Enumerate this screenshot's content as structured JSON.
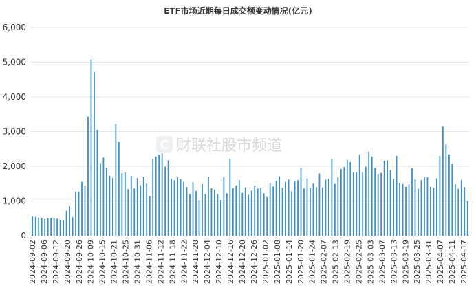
{
  "chart_data": {
    "type": "bar",
    "title": "ETF市场近期每日成交额变动情况(亿元)",
    "ylim": [
      0,
      6000
    ],
    "y_ticks": [
      "0",
      "1,000",
      "2,000",
      "3,000",
      "4,000",
      "5,000",
      "6,000"
    ],
    "x_tick_labels": [
      "2024-09-02",
      "2024-09-06",
      "2024-09-12",
      "2024-09-20",
      "2024-09-26",
      "2024-10-09",
      "2024-10-15",
      "2024-10-21",
      "2024-10-25",
      "2024-10-31",
      "2024-11-06",
      "2024-11-12",
      "2024-11-18",
      "2024-11-22",
      "2024-11-28",
      "2024-12-04",
      "2024-12-10",
      "2024-12-16",
      "2024-12-20",
      "2024-12-26",
      "2025-01-02",
      "2025-01-08",
      "2025-01-14",
      "2025-01-20",
      "2025-01-24",
      "2025-02-07",
      "2025-02-13",
      "2025-02-19",
      "2025-02-25",
      "2025-03-03",
      "2025-03-07",
      "2025-03-13",
      "2025-03-19",
      "2025-03-25",
      "2025-03-31",
      "2025-04-07",
      "2025-04-11",
      "2025-04-17"
    ],
    "values": [
      550,
      540,
      520,
      510,
      480,
      500,
      510,
      510,
      490,
      460,
      450,
      720,
      850,
      530,
      1270,
      1270,
      1550,
      1440,
      3430,
      5080,
      4710,
      3050,
      2090,
      2250,
      1960,
      1730,
      1660,
      3220,
      2700,
      1800,
      1830,
      1340,
      1720,
      1360,
      1660,
      1450,
      1700,
      1500,
      1140,
      2210,
      2280,
      2330,
      2370,
      1990,
      2170,
      1640,
      1600,
      1680,
      1630,
      1550,
      1400,
      1200,
      1540,
      1290,
      1020,
      1490,
      1200,
      1700,
      1370,
      1330,
      1200,
      1030,
      1680,
      1220,
      2220,
      1370,
      1450,
      1600,
      1230,
      1390,
      1180,
      1300,
      1440,
      1360,
      1380,
      1220,
      1110,
      1510,
      1420,
      1580,
      1710,
      1380,
      1550,
      1620,
      1280,
      1560,
      1600,
      1950,
      1360,
      1650,
      1380,
      1500,
      1400,
      1790,
      1390,
      1610,
      1640,
      2210,
      1490,
      1680,
      1920,
      1980,
      2180,
      2120,
      1830,
      1820,
      2330,
      1820,
      1990,
      2420,
      2280,
      1950,
      1780,
      1810,
      2160,
      2170,
      1880,
      1640,
      2300,
      1510,
      1490,
      1410,
      1480,
      1940,
      1620,
      1350,
      1600,
      1690,
      1680,
      1410,
      1380,
      1650,
      2300,
      3140,
      2630,
      2340,
      2070,
      1480,
      1350,
      1600,
      1400,
      1000
    ]
  },
  "watermark": {
    "logo_char": "C",
    "text": "财联社股市频道"
  },
  "colors": {
    "bar": "#3d8ec5",
    "grid": "#e6e6e6",
    "axis": "#333333",
    "logo": "#eef0f2"
  }
}
